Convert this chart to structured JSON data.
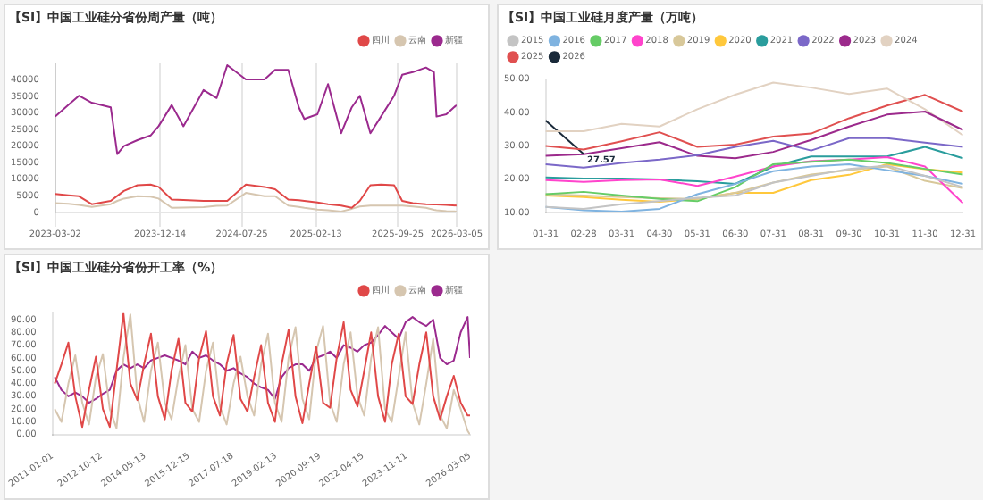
{
  "chart_data": [
    {
      "type": "line",
      "title": "【SI】中国工业硅分省份周产量（吨）",
      "x": [
        "2023-03-02",
        "2023-04-07",
        "2023-05-06",
        "2023-06-10",
        "2023-08-01",
        "2023-08-19",
        "2023-09-06",
        "2023-10-13",
        "2023-11-18",
        "2023-12-10",
        "2024-01-15",
        "2024-02-16",
        "2024-04-11",
        "2024-05-17",
        "2024-06-15",
        "2024-08-05",
        "2024-09-25",
        "2024-10-24",
        "2024-11-29",
        "2024-12-28",
        "2025-01-12",
        "2025-02-17",
        "2025-03-18",
        "2025-04-23",
        "2025-05-22",
        "2025-06-13",
        "2025-07-12",
        "2025-08-10",
        "2025-09-15",
        "2025-10-07",
        "2025-11-05",
        "2025-12-11",
        "2026-01-02",
        "2026-01-09",
        "2026-02-05",
        "2026-03-05"
      ],
      "series": [
        {
          "name": "四川",
          "color": "#e04848",
          "values": [
            5600,
            5200,
            4900,
            2500,
            3500,
            5000,
            6500,
            8200,
            8400,
            7700,
            3900,
            3800,
            3500,
            3500,
            3500,
            8400,
            7700,
            7000,
            3900,
            3700,
            3500,
            3000,
            2500,
            2100,
            1400,
            3500,
            8200,
            8400,
            8200,
            3500,
            2800,
            2500,
            2400,
            2400,
            2300,
            2100
          ]
        },
        {
          "name": "云南",
          "color": "#d6c6b0",
          "values": [
            2800,
            2600,
            2300,
            1700,
            2500,
            3500,
            4200,
            4900,
            4800,
            4200,
            1400,
            1500,
            1600,
            2000,
            2100,
            5900,
            4900,
            4900,
            2100,
            1700,
            1400,
            900,
            700,
            300,
            1100,
            1800,
            2100,
            2100,
            2100,
            2100,
            1800,
            1400,
            800,
            700,
            400,
            300
          ]
        },
        {
          "name": "新疆",
          "color": "#9b2a8e",
          "values": [
            28900,
            32400,
            35200,
            33100,
            31700,
            17600,
            20000,
            21800,
            23200,
            26000,
            32400,
            26000,
            36900,
            34500,
            44400,
            40100,
            40100,
            43000,
            43000,
            31700,
            28200,
            29600,
            38700,
            23900,
            31700,
            35200,
            23900,
            28900,
            35200,
            41500,
            42300,
            43700,
            42300,
            28900,
            29600,
            32400
          ]
        }
      ],
      "xlim": [
        "2023-03-02",
        "2026-03-05"
      ],
      "xticks": [
        "2023-03-02",
        "2023-12-14",
        "2024-07-25",
        "2025-02-13",
        "2025-09-25",
        "2026-03-05"
      ],
      "ylim": [
        0,
        45000
      ],
      "yticks": [
        0,
        5000,
        10000,
        15000,
        20000,
        25000,
        30000,
        35000,
        40000
      ],
      "grid": "x",
      "legend": "top right",
      "marker": "none"
    },
    {
      "type": "line",
      "title": "【SI】中国工业硅月度产量（万吨）",
      "categories": [
        "01-31",
        "02-28",
        "03-31",
        "04-30",
        "05-31",
        "06-30",
        "07-31",
        "08-31",
        "09-30",
        "10-31",
        "11-30",
        "12-31"
      ],
      "series": [
        {
          "name": "2015",
          "color": "#c4c4c4",
          "values": [
            11.7,
            11.1,
            12.5,
            13.4,
            14.4,
            15.1,
            19,
            21,
            23.1,
            24.1,
            21,
            17.6
          ]
        },
        {
          "name": "2016",
          "color": "#7fb3e0",
          "values": [
            11.7,
            10.7,
            10.3,
            11.1,
            15.5,
            18.6,
            22.4,
            23.8,
            24.5,
            22.7,
            21,
            18.6
          ]
        },
        {
          "name": "2017",
          "color": "#66cc66",
          "values": [
            15.5,
            16.2,
            15.1,
            14.1,
            13.4,
            17.6,
            24.5,
            25.2,
            25.9,
            24.9,
            23.1,
            21.4
          ]
        },
        {
          "name": "2018",
          "color": "#ff44cc",
          "values": [
            19.7,
            19.2,
            19.7,
            19.9,
            18,
            20.8,
            23.8,
            25.4,
            25.9,
            26.6,
            23.8,
            12.8
          ]
        },
        {
          "name": "2019",
          "color": "#d8c89a",
          "values": [
            15.5,
            15.1,
            14.6,
            14.3,
            14.1,
            15.9,
            19,
            21.4,
            22.7,
            23.8,
            19.5,
            17.3
          ]
        },
        {
          "name": "2020",
          "color": "#ffc83c",
          "values": [
            15.1,
            14.6,
            13.8,
            13.2,
            14.1,
            15.9,
            15.9,
            19.7,
            21.3,
            24.5,
            23,
            22
          ]
        },
        {
          "name": "2021",
          "color": "#2a9d9d",
          "values": [
            20.5,
            20.2,
            20.2,
            19.9,
            19.4,
            18.6,
            23.8,
            26.8,
            26.8,
            26.8,
            29.7,
            26.3
          ]
        },
        {
          "name": "2022",
          "color": "#7b68c8",
          "values": [
            24.5,
            23.5,
            24.9,
            25.9,
            27.2,
            29.7,
            31.5,
            28.6,
            32.3,
            32.3,
            31,
            29.7
          ]
        },
        {
          "name": "2023",
          "color": "#9c2a8c",
          "values": [
            27,
            27.5,
            29.3,
            31.1,
            27,
            26.3,
            28.2,
            31.8,
            35.8,
            39.4,
            40.3,
            34.8
          ]
        },
        {
          "name": "2024",
          "color": "#e2d2c2",
          "values": [
            34.4,
            34.4,
            36.6,
            35.8,
            41,
            45.4,
            49,
            47.5,
            45.6,
            47.2,
            41,
            33.2
          ]
        },
        {
          "name": "2025",
          "color": "#e05050",
          "values": [
            30,
            28.9,
            31.4,
            34.1,
            29.7,
            30.4,
            32.8,
            33.7,
            38.3,
            42.1,
            45.3,
            40.3
          ]
        },
        {
          "name": "2026",
          "color": "#1a2a3a",
          "values": [
            37.6,
            27.57,
            null,
            null,
            null,
            null,
            null,
            null,
            null,
            null,
            null,
            null
          ]
        }
      ],
      "ylim": [
        10,
        50
      ],
      "yticks": [
        {
          "value": 10,
          "label": "10.00"
        },
        {
          "value": 20,
          "label": "20.00"
        },
        {
          "value": 30,
          "label": "30.00"
        },
        {
          "value": 40,
          "label": "40.00"
        },
        {
          "value": 50,
          "label": "50.00"
        }
      ],
      "annotations": [
        {
          "text": "27.57",
          "x": "02-28",
          "y": 27.57
        }
      ],
      "legend": "top left",
      "marker": "none"
    },
    {
      "type": "line",
      "title": "【SI】中国工业硅分省份开工率（%）",
      "x": [
        "2011-02",
        "2011-05",
        "2011-08",
        "2011-11",
        "2012-02",
        "2012-05",
        "2012-08",
        "2012-11",
        "2013-02",
        "2013-05",
        "2013-08",
        "2013-11",
        "2014-02",
        "2014-05",
        "2014-08",
        "2014-11",
        "2015-02",
        "2015-05",
        "2015-08",
        "2015-11",
        "2016-02",
        "2016-05",
        "2016-08",
        "2016-11",
        "2017-02",
        "2017-05",
        "2017-08",
        "2017-11",
        "2018-02",
        "2018-05",
        "2018-08",
        "2018-11",
        "2019-02",
        "2019-05",
        "2019-08",
        "2019-11",
        "2020-02",
        "2020-05",
        "2020-08",
        "2020-11",
        "2021-02",
        "2021-05",
        "2021-08",
        "2021-11",
        "2022-02",
        "2022-05",
        "2022-08",
        "2022-11",
        "2023-02",
        "2023-05",
        "2023-08",
        "2023-11",
        "2024-02",
        "2024-05",
        "2024-08",
        "2024-11",
        "2025-02",
        "2025-05",
        "2025-08",
        "2025-11",
        "2026-02",
        "2026-03-05"
      ],
      "series": [
        {
          "name": "四川",
          "color": "#e04848",
          "values": [
            40,
            55,
            72,
            30,
            6,
            35,
            61,
            20,
            6,
            50,
            95,
            40,
            27,
            55,
            79,
            30,
            12,
            50,
            75,
            25,
            18,
            60,
            81,
            30,
            15,
            55,
            78,
            28,
            18,
            45,
            70,
            25,
            10,
            55,
            82,
            30,
            9,
            40,
            69,
            25,
            21,
            60,
            88,
            35,
            22,
            50,
            80,
            30,
            10,
            55,
            79,
            30,
            24,
            55,
            80,
            30,
            12,
            30,
            46,
            25,
            15,
            15
          ]
        },
        {
          "name": "云南",
          "color": "#d6c6b0",
          "values": [
            20,
            10,
            40,
            62,
            25,
            8,
            45,
            63,
            20,
            5,
            60,
            94,
            30,
            10,
            50,
            72,
            25,
            12,
            45,
            70,
            20,
            10,
            50,
            72,
            22,
            8,
            40,
            61,
            30,
            15,
            55,
            79,
            25,
            10,
            60,
            84,
            28,
            12,
            65,
            85,
            25,
            10,
            55,
            80,
            30,
            15,
            60,
            84,
            20,
            10,
            45,
            80,
            25,
            8,
            40,
            75,
            15,
            5,
            35,
            20,
            3,
            0
          ]
        },
        {
          "name": "新疆",
          "color": "#9b2a8e",
          "values": [
            45,
            35,
            30,
            33,
            30,
            25,
            28,
            32,
            35,
            50,
            55,
            52,
            55,
            52,
            58,
            60,
            62,
            60,
            58,
            55,
            65,
            60,
            62,
            58,
            55,
            50,
            52,
            48,
            45,
            40,
            37,
            35,
            28,
            45,
            52,
            55,
            55,
            50,
            60,
            62,
            65,
            60,
            70,
            68,
            65,
            70,
            72,
            78,
            85,
            80,
            75,
            88,
            92,
            88,
            85,
            90,
            60,
            55,
            58,
            80,
            92,
            60
          ]
        }
      ],
      "xlim": [
        "2011-01-01",
        "2026-03-05"
      ],
      "xticks": [
        "2011-01-01",
        "2012-10-12",
        "2014-05-13",
        "2015-12-15",
        "2017-07-18",
        "2019-02-13",
        "2020-09-19",
        "2022-04-15",
        "2023-11-11",
        "2026-03-05"
      ],
      "ylim": [
        0,
        95
      ],
      "yticks": [
        {
          "value": 0,
          "label": "0.00"
        },
        {
          "value": 10,
          "label": "10.00"
        },
        {
          "value": 20,
          "label": "20.00"
        },
        {
          "value": 30,
          "label": "30.00"
        },
        {
          "value": 40,
          "label": "40.00"
        },
        {
          "value": 50,
          "label": "50.00"
        },
        {
          "value": 60,
          "label": "60.00"
        },
        {
          "value": 70,
          "label": "70.00"
        },
        {
          "value": 80,
          "label": "80.00"
        },
        {
          "value": 90,
          "label": "90.00"
        }
      ],
      "legend": "top right",
      "marker": "none"
    }
  ]
}
